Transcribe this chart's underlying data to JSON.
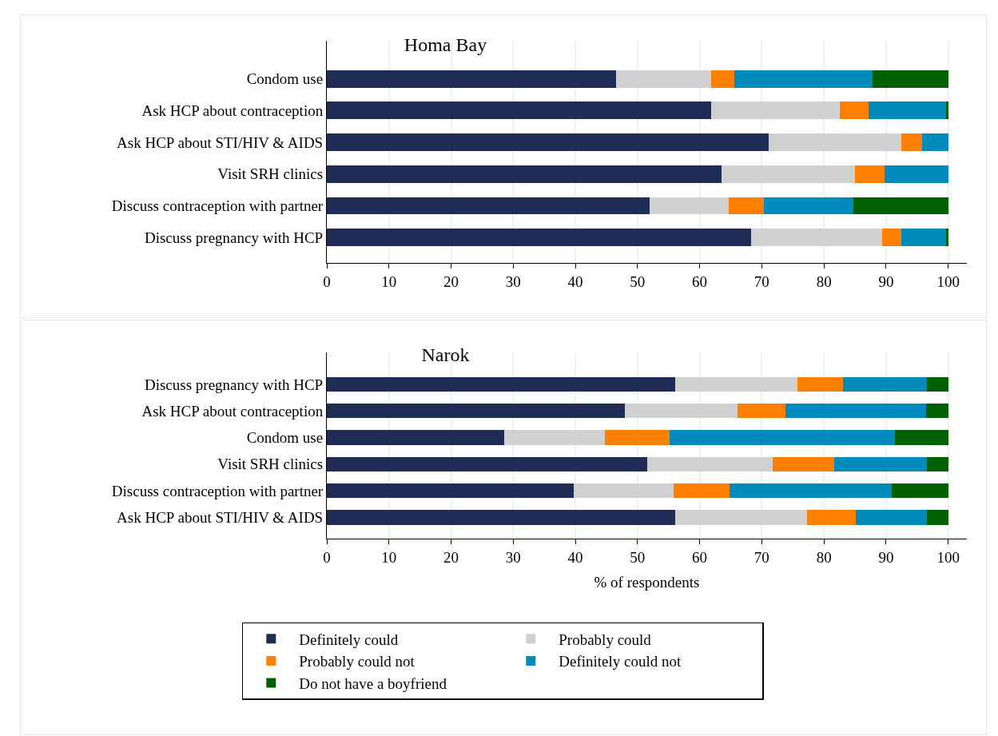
{
  "chart_data": [
    {
      "type": "bar",
      "title": "Homa Bay",
      "orientation": "horizontal",
      "stacked": true,
      "categories": [
        "Condom use",
        "Ask HCP about contraception",
        "Ask HCP about STI/HIV & AIDS",
        "Visit SRH clinics",
        "Discuss contraception with partner",
        "Discuss pregnancy with HCP"
      ],
      "series": [
        {
          "color": "#1f2d56",
          "values": [
            46.5,
            61.9,
            71.1,
            63.5,
            52.0,
            68.3
          ]
        },
        {
          "color": "#d0d0d0",
          "values": [
            15.3,
            20.6,
            21.4,
            21.5,
            12.7,
            21.1
          ]
        },
        {
          "color": "#ff8000",
          "values": [
            3.8,
            4.7,
            3.3,
            4.8,
            5.7,
            3.0
          ]
        },
        {
          "color": "#008bbc",
          "values": [
            22.2,
            12.4,
            4.2,
            10.2,
            14.3,
            7.3
          ]
        },
        {
          "color": "#005f00",
          "values": [
            12.2,
            0.4,
            0,
            0,
            15.3,
            0.3
          ]
        }
      ],
      "xlim": [
        0,
        103
      ],
      "xticks": [
        0,
        10,
        20,
        30,
        40,
        50,
        60,
        70,
        80,
        90,
        100
      ],
      "grid": "x",
      "legend": false
    },
    {
      "type": "bar",
      "title": "Narok",
      "xlabel": "% of respondents",
      "orientation": "horizontal",
      "stacked": true,
      "categories": [
        "Discuss pregnancy with HCP",
        "Ask HCP about contraception",
        "Condom use",
        "Visit SRH clinics",
        "Discuss contraception with partner",
        "Ask HCP about STI/HIV & AIDS"
      ],
      "series": [
        {
          "name": "Definitely could",
          "color": "#1f2d56",
          "values": [
            56.0,
            47.9,
            28.6,
            51.5,
            39.7,
            56.0
          ]
        },
        {
          "name": "Probably could",
          "color": "#d0d0d0",
          "values": [
            19.7,
            18.2,
            16.1,
            20.3,
            16.1,
            21.3
          ]
        },
        {
          "name": "Probably could not",
          "color": "#ff8000",
          "values": [
            7.4,
            7.7,
            10.5,
            9.8,
            9.0,
            7.8
          ]
        },
        {
          "name": "Definitely could not",
          "color": "#008bbc",
          "values": [
            13.5,
            22.6,
            36.2,
            15.0,
            26.1,
            11.5
          ]
        },
        {
          "name": "Do not have a boyfriend",
          "color": "#005f00",
          "values": [
            3.4,
            3.6,
            8.6,
            3.4,
            9.1,
            3.4
          ]
        }
      ],
      "xlim": [
        0,
        103
      ],
      "xticks": [
        0,
        10,
        20,
        30,
        40,
        50,
        60,
        70,
        80,
        90,
        100
      ],
      "grid": "x",
      "legend": "bottom"
    }
  ]
}
